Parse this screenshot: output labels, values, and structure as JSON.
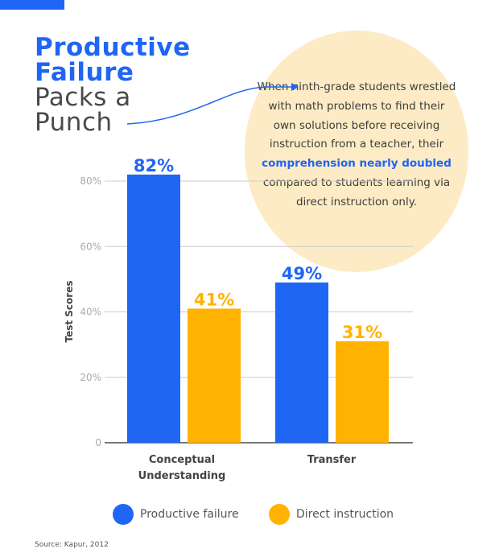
{
  "title": {
    "line1": "Productive",
    "line2": "Failure",
    "line3": "Packs a",
    "line4": "Punch"
  },
  "callout": {
    "text_before": "When ninth-grade students wrestled with math problems to find their own solutions before receiving instruction from a teacher, their ",
    "highlight": "comprehension nearly doubled",
    "text_after": " compared to students learning via direct instruction only."
  },
  "source": "Source: Kapur, 2012",
  "colors": {
    "productive": "#1f66f5",
    "direct": "#ffb300",
    "bubble": "#fcebc4"
  },
  "chart_data": {
    "type": "bar",
    "categories": [
      "Conceptual Understanding",
      "Transfer"
    ],
    "category_lines": [
      [
        "Conceptual",
        "Understanding"
      ],
      [
        "Transfer"
      ]
    ],
    "series": [
      {
        "name": "Productive failure",
        "values": [
          82,
          49
        ],
        "labels": [
          "82%",
          "49%"
        ]
      },
      {
        "name": "Direct instruction",
        "values": [
          41,
          31
        ],
        "labels": [
          "41%",
          "31%"
        ]
      }
    ],
    "ylabel": "Test Scores",
    "ylim": [
      0,
      80
    ],
    "yticks": [
      {
        "v": 0,
        "label": "0"
      },
      {
        "v": 20,
        "label": "20%"
      },
      {
        "v": 40,
        "label": "40%"
      },
      {
        "v": 60,
        "label": "60%"
      },
      {
        "v": 80,
        "label": "80%"
      }
    ],
    "grid": true,
    "legend": "bottom"
  }
}
